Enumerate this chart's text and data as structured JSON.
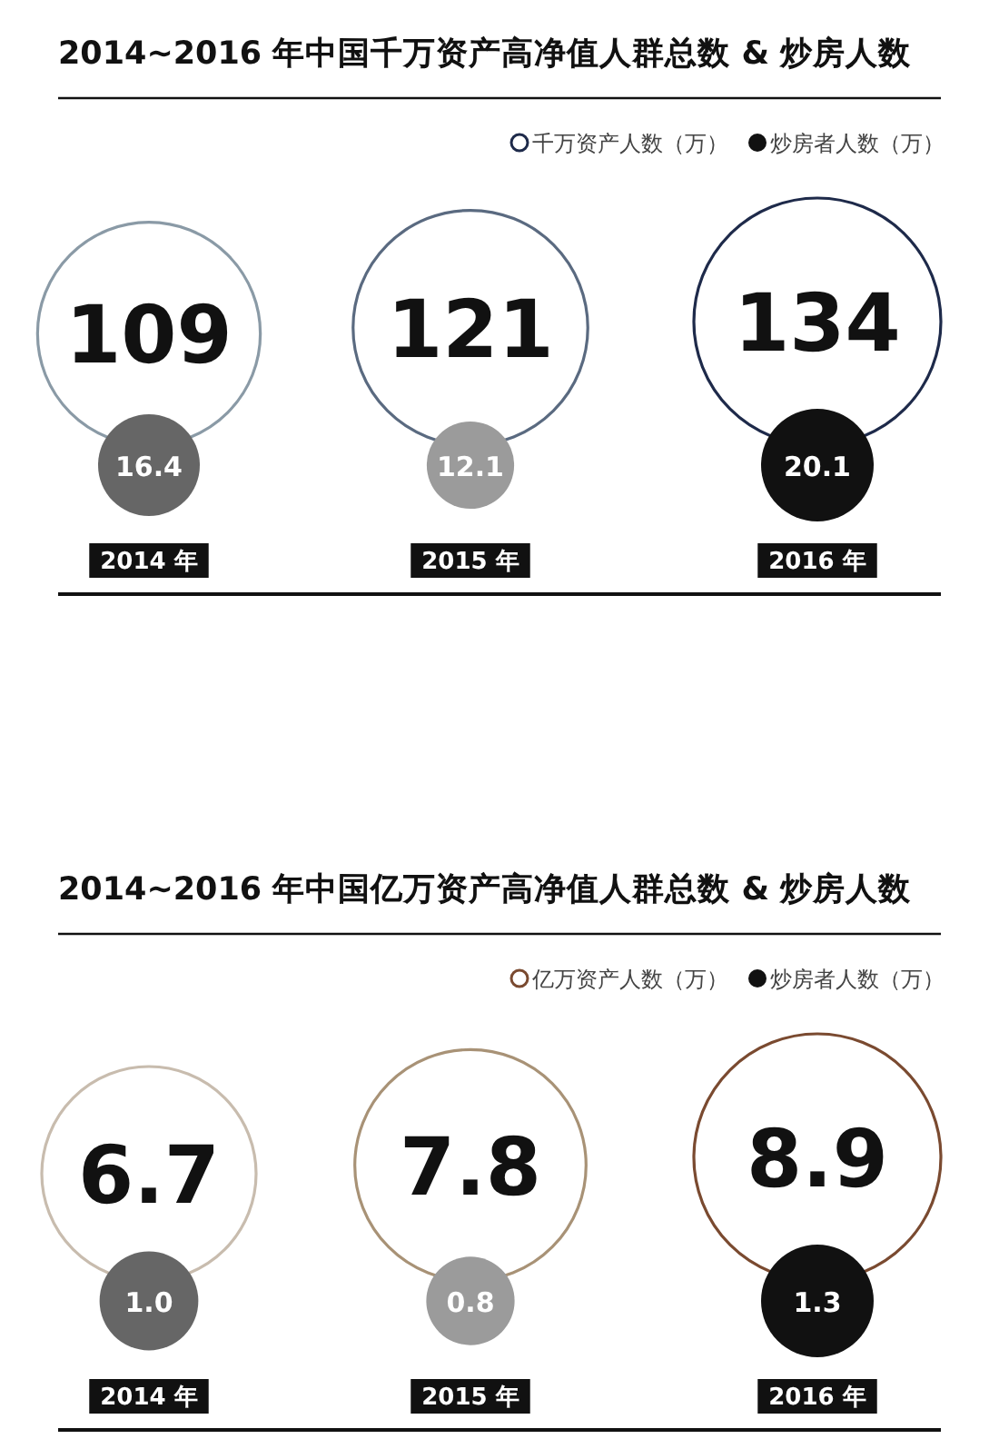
{
  "chart_data": [
    {
      "type": "other",
      "title": "2014~2016 年中国千万资产高净值人群总数 & 炒房人数",
      "categories": [
        "2014 年",
        "2015 年",
        "2016 年"
      ],
      "legend": "top right",
      "data_labels": true,
      "series": [
        {
          "name": "千万资产人数（万）",
          "colors": [
            "#8a9aa6",
            "#5a6a80",
            "#1e2a4a"
          ],
          "values": [
            109,
            121,
            134
          ]
        },
        {
          "name": "炒房者人数（万）",
          "colors": [
            "#666666",
            "#9b9b9b",
            "#111111"
          ],
          "values": [
            16.4,
            12.1,
            20.1
          ]
        }
      ]
    },
    {
      "type": "other",
      "title": "2014~2016 年中国亿万资产高净值人群总数 & 炒房人数",
      "categories": [
        "2014 年",
        "2015 年",
        "2016 年"
      ],
      "legend": "top right",
      "data_labels": true,
      "series": [
        {
          "name": "亿万资产人数（万）",
          "colors": [
            "#c8bcae",
            "#a89276",
            "#7a4a30"
          ],
          "values": [
            6.7,
            7.8,
            8.9
          ]
        },
        {
          "name": "炒房者人数（万）",
          "colors": [
            "#666666",
            "#9b9b9b",
            "#111111"
          ],
          "values": [
            1.0,
            0.8,
            1.3
          ],
          "value_labels": [
            "1.0",
            "0.8",
            "1.3"
          ]
        }
      ]
    }
  ]
}
